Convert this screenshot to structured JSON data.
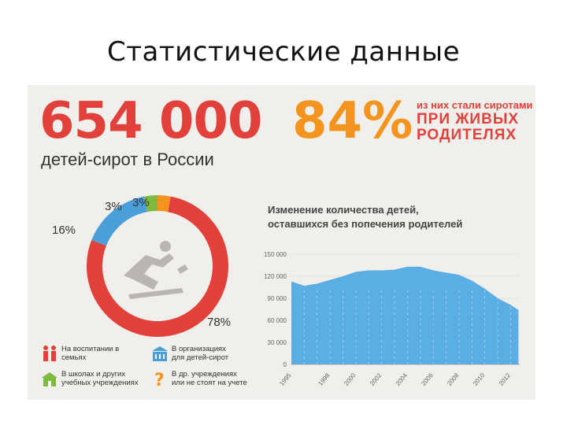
{
  "slide": {
    "title": "Статистические данные"
  },
  "infographic": {
    "headline_number": "654 000",
    "headline_caption": "детей-сирот в России",
    "percent_value": "84%",
    "percent_line1": "из них стали сиротами",
    "percent_line2": "ПРИ ЖИВЫХ",
    "percent_line3": "РОДИТЕЛЯХ",
    "legend": [
      {
        "icon": "family-icon",
        "color": "#e2403a",
        "text": "На воспитании в\nсемьях"
      },
      {
        "icon": "building-icon",
        "color": "#4a9fd8",
        "text": "В организациях\nдля детей-сирот"
      },
      {
        "icon": "school-icon",
        "color": "#7dba3f",
        "text": "В школах и других\nучебных учреждениях"
      },
      {
        "icon": "question-icon",
        "color": "#f3941e",
        "text": "В др. учреждениях\nили не стоят на учете"
      }
    ]
  },
  "chart_data": [
    {
      "type": "pie",
      "subtype": "donut",
      "slices": [
        {
          "label": "78%",
          "value": 78,
          "color": "#e2403a"
        },
        {
          "label": "16%",
          "value": 16,
          "color": "#4a9fd8"
        },
        {
          "label": "3%",
          "value": 3,
          "color": "#7dba3f"
        },
        {
          "label": "3%",
          "value": 3,
          "color": "#f3941e"
        }
      ],
      "center_icon": "child-falling-icon"
    },
    {
      "type": "area",
      "title": "Изменение количества детей,\nоставшихся без попечения родителей",
      "color": "#5aaee4",
      "ylim": [
        0,
        150000
      ],
      "yticks": [
        "0",
        "30 000",
        "60 000",
        "90 000",
        "120 000",
        "150 000"
      ],
      "xlim": [
        1995,
        2012.7
      ],
      "xticks": [
        "1995",
        "1998",
        "2000",
        "2002",
        "2004",
        "2006",
        "2008",
        "2010",
        "2012"
      ],
      "x": [
        1995,
        1996,
        1997,
        1998,
        1999,
        2000,
        2001,
        2002,
        2003,
        2004,
        2005,
        2006,
        2007,
        2008,
        2009,
        2010,
        2011,
        2012,
        2012.6
      ],
      "y": [
        113000,
        107000,
        110000,
        115000,
        120000,
        126000,
        128000,
        128000,
        129000,
        133000,
        133000,
        128000,
        125000,
        122000,
        114000,
        103000,
        90000,
        81000,
        74000
      ],
      "grid": "vertical dashed"
    }
  ]
}
